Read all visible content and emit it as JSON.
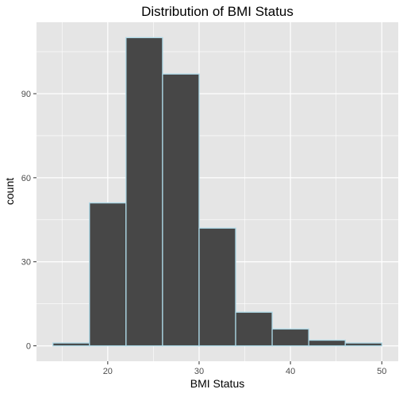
{
  "chart_data": {
    "type": "bar",
    "subtype": "histogram",
    "title": "Distribution of BMI Status",
    "xlabel": "BMI Status",
    "ylabel": "count",
    "bins": [
      {
        "x0": 14,
        "x1": 18,
        "count": 1
      },
      {
        "x0": 18,
        "x1": 22,
        "count": 51
      },
      {
        "x0": 22,
        "x1": 26,
        "count": 110
      },
      {
        "x0": 26,
        "x1": 30,
        "count": 97
      },
      {
        "x0": 30,
        "x1": 34,
        "count": 42
      },
      {
        "x0": 34,
        "x1": 38,
        "count": 12
      },
      {
        "x0": 38,
        "x1": 42,
        "count": 6
      },
      {
        "x0": 42,
        "x1": 46,
        "count": 2
      },
      {
        "x0": 46,
        "x1": 50,
        "count": 1
      }
    ],
    "xticks": [
      20,
      30,
      40,
      50
    ],
    "yticks": [
      0,
      30,
      60,
      90
    ],
    "xlim": [
      12.2,
      51.8
    ],
    "ylim": [
      -5.5,
      115.5
    ],
    "grid": true,
    "legend": "none",
    "colors": {
      "bar_fill": "#474747",
      "bar_outline": "#add8e6",
      "panel_background": "#e5e5e5",
      "grid": "#ffffff"
    }
  }
}
